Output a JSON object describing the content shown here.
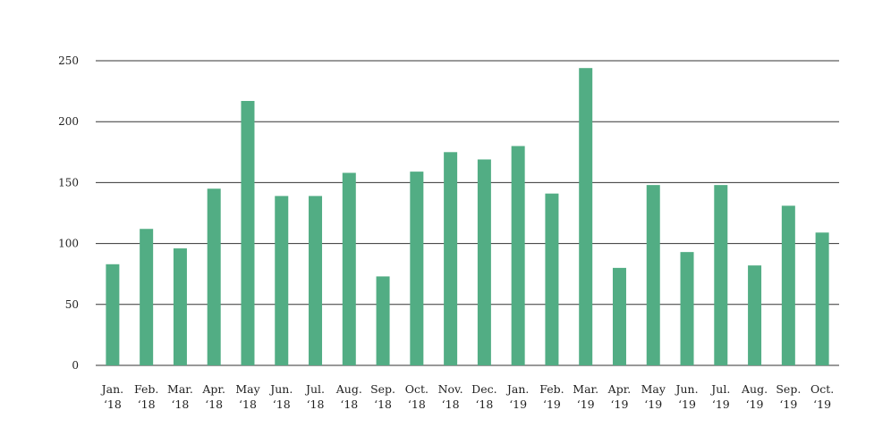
{
  "chart_data": {
    "type": "bar",
    "categories": [
      [
        "Jan.",
        "‘18"
      ],
      [
        "Feb.",
        "‘18"
      ],
      [
        "Mar.",
        "‘18"
      ],
      [
        "Apr.",
        "‘18"
      ],
      [
        "May",
        "‘18"
      ],
      [
        "Jun.",
        "‘18"
      ],
      [
        "Jul.",
        "‘18"
      ],
      [
        "Aug.",
        "‘18"
      ],
      [
        "Sep.",
        "‘18"
      ],
      [
        "Oct.",
        "‘18"
      ],
      [
        "Nov.",
        "‘18"
      ],
      [
        "Dec.",
        "‘18"
      ],
      [
        "Jan.",
        "‘19"
      ],
      [
        "Feb.",
        "‘19"
      ],
      [
        "Mar.",
        "‘19"
      ],
      [
        "Apr.",
        "‘19"
      ],
      [
        "May",
        "‘19"
      ],
      [
        "Jun.",
        "‘19"
      ],
      [
        "Jul.",
        "‘19"
      ],
      [
        "Aug.",
        "‘19"
      ],
      [
        "Sep.",
        "‘19"
      ],
      [
        "Oct.",
        "‘19"
      ]
    ],
    "values": [
      83,
      112,
      96,
      145,
      217,
      139,
      139,
      158,
      73,
      159,
      175,
      169,
      180,
      141,
      244,
      80,
      148,
      93,
      148,
      82,
      131,
      109
    ],
    "title": "",
    "xlabel": "",
    "ylabel": "",
    "ylim": [
      0,
      250
    ],
    "yticks": [
      "0",
      "50",
      "100",
      "150",
      "200",
      "250"
    ],
    "grid": true,
    "legend": "none",
    "bar_color": "#52ad84"
  }
}
